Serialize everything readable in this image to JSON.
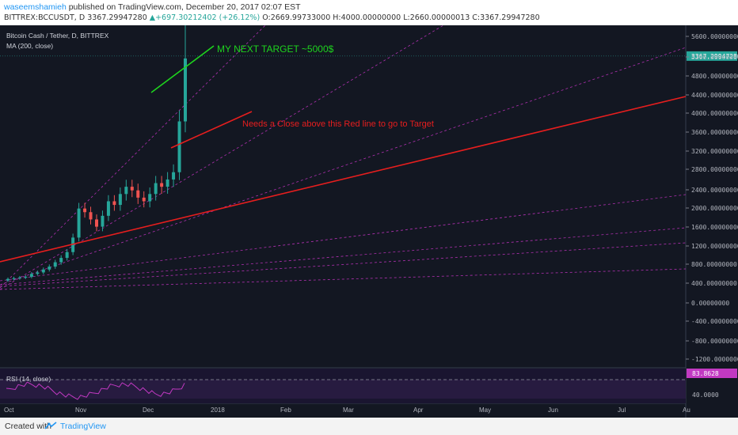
{
  "header": {
    "publisher": "waseemshamieh",
    "published_text": " published on TradingView.com, December 20, 2017 02:07 EST",
    "symbol": "BITTREX:BCCUSDT, D",
    "last": "3367.29947280",
    "change": "▲+697.30212402 (+26.12%)",
    "ohlc": "O:2669.99733000 H:4000.00000000 L:2660.00000013 C:3367.29947280"
  },
  "footer": {
    "created": "Created with",
    "brand": "TradingView"
  },
  "chart_data": [
    {
      "type": "candlestick",
      "title": "Bitcoin Cash / Tether, D, BITTREX",
      "indicator": "MA (200, close)",
      "x_ticks": [
        "Oct",
        "Nov",
        "Dec",
        "2018",
        "Feb",
        "Mar",
        "Apr",
        "May",
        "Jun",
        "Jul",
        "Au"
      ],
      "y_ticks": [
        "5600.00000000",
        "5200.00000000",
        "4800.00000000",
        "4400.00000000",
        "4000.00000000",
        "3600.00000000",
        "3200.00000000",
        "2800.00000000",
        "2400.00000000",
        "2000.00000000",
        "1600.00000000",
        "1200.00000000",
        "800.00000000",
        "400.00000000",
        "0.00000000",
        "-400.00000000",
        "-800.00000000",
        "-1200.00000000"
      ],
      "ylim": [
        -1400,
        5850
      ],
      "last_price_label": "3367.29947280",
      "last_price": 3367.3,
      "annotations": {
        "target": "MY NEXT TARGET ~5000$",
        "note": "Needs a Close above this Red line to go to Target"
      },
      "colors": {
        "up": "#26a69a",
        "down": "#ef5350",
        "red_line": "#e61e1e",
        "target_line": "#1ed41e",
        "fan": "#b030b0"
      },
      "closes_approx": [
        330,
        340,
        350,
        360,
        400,
        420,
        460,
        500,
        560,
        620,
        700,
        900,
        1300,
        1250,
        1150,
        1050,
        1200,
        1400,
        1350,
        1500,
        1600,
        1550,
        1450,
        1400,
        1500,
        1650,
        1600,
        1700,
        1800,
        2500,
        3367
      ]
    },
    {
      "type": "line",
      "title": "RSI (14, close)",
      "y_ticks": [
        "40.0000"
      ],
      "last_value_label": "83.8628",
      "ylim": [
        20,
        100
      ]
    }
  ]
}
